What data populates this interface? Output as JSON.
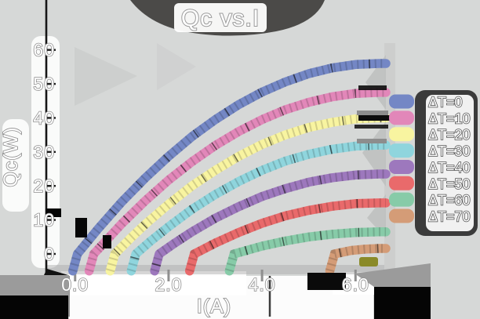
{
  "title": "Qc vs.I",
  "axes": {
    "x_label": "I(A)",
    "y_label": "Qc(W)",
    "x_ticks": [
      "0.0",
      "2.0",
      "4.0",
      "6.0"
    ],
    "x_tick_values": [
      0,
      2,
      4,
      6
    ],
    "y_ticks": [
      "0",
      "10",
      "20",
      "30",
      "40",
      "50",
      "60"
    ],
    "y_tick_values": [
      0,
      10,
      20,
      30,
      40,
      50,
      60
    ]
  },
  "colors": {
    "background": "#d6d8d7",
    "title_banner": "#4b4a48",
    "legend_background": "#3b3b3b",
    "text": "#ffffff",
    "text_outline": "#8f8f8f",
    "axis_line": "#161616"
  },
  "chart_data": {
    "type": "line",
    "title": "Qc vs.I",
    "xlabel": "I(A)",
    "ylabel": "Qc(W)",
    "xlim": [
      -0.6,
      6.7
    ],
    "ylim": [
      -6,
      62
    ],
    "grid": false,
    "legend_position": "right",
    "series": [
      {
        "name": "ΔT=0",
        "color": "#7487c5",
        "points": [
          [
            -0.05,
            -5
          ],
          [
            0.05,
            0
          ],
          [
            0.5,
            7.5
          ],
          [
            1,
            15.3
          ],
          [
            1.5,
            22.3
          ],
          [
            2,
            28.7
          ],
          [
            2.5,
            34.5
          ],
          [
            3,
            39.5
          ],
          [
            3.5,
            43.9
          ],
          [
            4,
            47.6
          ],
          [
            4.5,
            50.6
          ],
          [
            5,
            53
          ],
          [
            5.5,
            54.7
          ],
          [
            6,
            55.7
          ],
          [
            6.5,
            56
          ],
          [
            6.65,
            56
          ]
        ]
      },
      {
        "name": "ΔT=10",
        "color": "#e287b9",
        "points": [
          [
            0.3,
            -5
          ],
          [
            0.4,
            0
          ],
          [
            1,
            8.9
          ],
          [
            1.5,
            15.6
          ],
          [
            2,
            21.7
          ],
          [
            2.5,
            27.1
          ],
          [
            3,
            31.9
          ],
          [
            3.5,
            36
          ],
          [
            4,
            39.5
          ],
          [
            4.5,
            42.4
          ],
          [
            5,
            44.6
          ],
          [
            5.5,
            46.2
          ],
          [
            6,
            47.2
          ],
          [
            6.5,
            47.5
          ],
          [
            6.65,
            47.5
          ]
        ]
      },
      {
        "name": "ΔT=20",
        "color": "#f8f4a0",
        "points": [
          [
            0.75,
            -5
          ],
          [
            0.85,
            0
          ],
          [
            1.2,
            4.8
          ],
          [
            1.5,
            8.7
          ],
          [
            2,
            14.6
          ],
          [
            2.5,
            20
          ],
          [
            3,
            24.6
          ],
          [
            3.5,
            28.7
          ],
          [
            4,
            32.2
          ],
          [
            4.5,
            35
          ],
          [
            5,
            37.2
          ],
          [
            5.5,
            38.7
          ],
          [
            6,
            39.7
          ],
          [
            6.5,
            40
          ],
          [
            6.65,
            40
          ]
        ]
      },
      {
        "name": "ΔT=30",
        "color": "#8fd5dd",
        "points": [
          [
            1.2,
            -5
          ],
          [
            1.3,
            0
          ],
          [
            1.6,
            3.6
          ],
          [
            2,
            8
          ],
          [
            2.5,
            13.1
          ],
          [
            3,
            17.5
          ],
          [
            3.5,
            21.3
          ],
          [
            4,
            24.6
          ],
          [
            4.5,
            27.3
          ],
          [
            5,
            29.3
          ],
          [
            5.5,
            30.8
          ],
          [
            6,
            31.7
          ],
          [
            6.5,
            32
          ],
          [
            6.65,
            32
          ]
        ]
      },
      {
        "name": "ΔT=40",
        "color": "#9d78bd",
        "points": [
          [
            1.7,
            -5
          ],
          [
            1.8,
            0
          ],
          [
            2.1,
            2.9
          ],
          [
            2.5,
            6.5
          ],
          [
            3,
            10.5
          ],
          [
            3.5,
            13.9
          ],
          [
            4,
            16.9
          ],
          [
            4.5,
            19.2
          ],
          [
            5,
            21.1
          ],
          [
            5.5,
            22.4
          ],
          [
            6,
            23.2
          ],
          [
            6.5,
            23.5
          ],
          [
            6.65,
            23.5
          ]
        ]
      },
      {
        "name": "ΔT=50",
        "color": "#e96a6b",
        "points": [
          [
            2.45,
            -5
          ],
          [
            2.55,
            0
          ],
          [
            3,
            3.2
          ],
          [
            3.5,
            6.3
          ],
          [
            4,
            9
          ],
          [
            4.5,
            11.2
          ],
          [
            5,
            12.8
          ],
          [
            5.5,
            14
          ],
          [
            6,
            14.8
          ],
          [
            6.5,
            15
          ],
          [
            6.65,
            15
          ]
        ]
      },
      {
        "name": "ΔT=60",
        "color": "#87cba8",
        "points": [
          [
            3.3,
            -5
          ],
          [
            3.4,
            0
          ],
          [
            4,
            2.3
          ],
          [
            4.5,
            3.8
          ],
          [
            5,
            5
          ],
          [
            5.5,
            5.8
          ],
          [
            6,
            6.3
          ],
          [
            6.5,
            6.5
          ],
          [
            6.65,
            6.5
          ]
        ]
      },
      {
        "name": "ΔT=70",
        "color": "#d49c77",
        "points": [
          [
            5.45,
            -5
          ],
          [
            5.55,
            0
          ],
          [
            5.9,
            1
          ],
          [
            6.2,
            1.4
          ],
          [
            6.5,
            1.6
          ],
          [
            6.65,
            1.6
          ]
        ]
      }
    ]
  },
  "legend": {
    "items": [
      {
        "label": "ΔT=0",
        "color": "#7487c5"
      },
      {
        "label": "ΔT=10",
        "color": "#e287b9"
      },
      {
        "label": "ΔT=20",
        "color": "#f8f4a0"
      },
      {
        "label": "ΔT=30",
        "color": "#8fd5dd"
      },
      {
        "label": "ΔT=40",
        "color": "#9d78bd"
      },
      {
        "label": "ΔT=50",
        "color": "#e96a6b"
      },
      {
        "label": "ΔT=60",
        "color": "#87cba8"
      },
      {
        "label": "ΔT=70",
        "color": "#d49c77"
      }
    ]
  }
}
